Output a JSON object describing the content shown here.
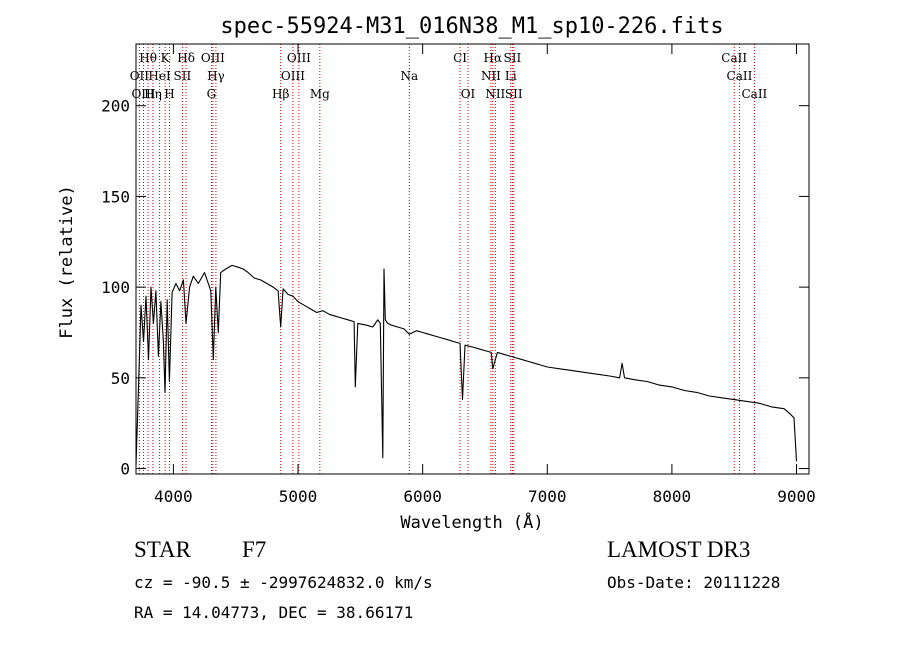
{
  "chart_data": {
    "type": "line",
    "title": "spec-55924-M31_016N38_M1_sp10-226.fits",
    "xlabel": "Wavelength (Å)",
    "ylabel": "Flux (relative)",
    "xlim": [
      3700,
      9100
    ],
    "ylim": [
      -3,
      234
    ],
    "xticks": [
      4000,
      5000,
      6000,
      7000,
      8000,
      9000
    ],
    "yticks": [
      0,
      50,
      100,
      150,
      200
    ],
    "grid": false,
    "series": [
      {
        "name": "flux",
        "x": [
          3700,
          3720,
          3740,
          3760,
          3780,
          3800,
          3820,
          3840,
          3860,
          3880,
          3900,
          3920,
          3933,
          3950,
          3968,
          3990,
          4020,
          4050,
          4080,
          4101,
          4130,
          4160,
          4200,
          4250,
          4300,
          4320,
          4340,
          4360,
          4380,
          4420,
          4470,
          4520,
          4560,
          4600,
          4650,
          4700,
          4750,
          4800,
          4840,
          4861,
          4880,
          4920,
          4960,
          5000,
          5050,
          5100,
          5150,
          5200,
          5250,
          5300,
          5350,
          5400,
          5450,
          5460,
          5480,
          5550,
          5600,
          5640,
          5660,
          5680,
          5690,
          5700,
          5720,
          5750,
          5800,
          5850,
          5893,
          5950,
          6000,
          6050,
          6100,
          6150,
          6200,
          6250,
          6300,
          6320,
          6340,
          6400,
          6450,
          6500,
          6550,
          6563,
          6600,
          6650,
          6700,
          6750,
          6800,
          6850,
          6900,
          6950,
          7000,
          7100,
          7200,
          7300,
          7400,
          7500,
          7580,
          7600,
          7620,
          7700,
          7800,
          7900,
          8000,
          8100,
          8200,
          8300,
          8400,
          8500,
          8600,
          8700,
          8800,
          8900,
          8950,
          8980,
          9000
        ],
        "y": [
          2,
          45,
          90,
          70,
          95,
          60,
          100,
          80,
          98,
          62,
          92,
          70,
          42,
          93,
          48,
          97,
          102,
          98,
          104,
          80,
          100,
          106,
          102,
          108,
          98,
          60,
          100,
          75,
          108,
          110,
          112,
          111,
          110,
          108,
          105,
          104,
          102,
          100,
          98,
          78,
          99,
          96,
          95,
          92,
          90,
          88,
          86,
          87,
          85,
          84,
          83,
          82,
          81,
          45,
          80,
          79,
          78,
          82,
          80,
          6,
          110,
          82,
          80,
          79,
          78,
          77,
          74,
          76,
          75,
          74,
          73,
          72,
          71,
          70,
          69,
          38,
          68,
          67,
          66,
          65,
          64,
          55,
          64,
          63,
          62,
          61,
          60,
          59,
          58,
          57,
          56,
          55,
          54,
          53,
          52,
          51,
          50,
          58,
          50,
          49,
          48,
          46,
          45,
          43,
          42,
          40,
          39,
          38,
          37,
          36,
          34,
          33,
          30,
          28,
          4
        ]
      }
    ],
    "lines": [
      {
        "label": "Hθ",
        "x": 3797,
        "row": 1
      },
      {
        "label": "K",
        "x": 3934,
        "row": 1
      },
      {
        "label": "Hδ",
        "x": 4102,
        "row": 1
      },
      {
        "label": "OIII",
        "x": 4317,
        "row": 1
      },
      {
        "label": "OIII",
        "x": 5007,
        "row": 1
      },
      {
        "label": "CI",
        "x": 6300,
        "row": 1
      },
      {
        "label": "Hα",
        "x": 6563,
        "row": 1
      },
      {
        "label": "SII",
        "x": 6720,
        "row": 1
      },
      {
        "label": "CaII",
        "x": 8500,
        "row": 1
      },
      {
        "label": "OII",
        "x": 3727,
        "row": 2
      },
      {
        "label": "HeI",
        "x": 3889,
        "row": 2
      },
      {
        "label": "SII",
        "x": 4072,
        "row": 2
      },
      {
        "label": "Hγ",
        "x": 4341,
        "row": 2
      },
      {
        "label": "OIII",
        "x": 4959,
        "row": 2
      },
      {
        "label": "Na",
        "x": 5893,
        "row": 2
      },
      {
        "label": "NII",
        "x": 6548,
        "row": 2
      },
      {
        "label": "Li",
        "x": 6707,
        "row": 2
      },
      {
        "label": "CaII",
        "x": 8542,
        "row": 2
      },
      {
        "label": "OIII",
        "x": 3760,
        "row": 3
      },
      {
        "label": "Hη",
        "x": 3836,
        "row": 3
      },
      {
        "label": "H",
        "x": 3969,
        "row": 3
      },
      {
        "label": "G",
        "x": 4305,
        "row": 3
      },
      {
        "label": "Hβ",
        "x": 4861,
        "row": 3
      },
      {
        "label": "Mg",
        "x": 5175,
        "row": 3
      },
      {
        "label": "OI",
        "x": 6364,
        "row": 3
      },
      {
        "label": "NII",
        "x": 6583,
        "row": 3
      },
      {
        "label": "SII",
        "x": 6731,
        "row": 3
      },
      {
        "label": "CaII",
        "x": 8662,
        "row": 3
      }
    ]
  },
  "info": {
    "object_class": "STAR",
    "subclass": "F7",
    "survey": "LAMOST DR3",
    "redshift": "cz = -90.5 ± -2997624832.0 km/s",
    "obs_date": "Obs-Date: 20111228",
    "coords": "RA =  14.04773, DEC =  38.66171"
  },
  "colors": {
    "line": "#000000",
    "marker": "#cc0000"
  }
}
